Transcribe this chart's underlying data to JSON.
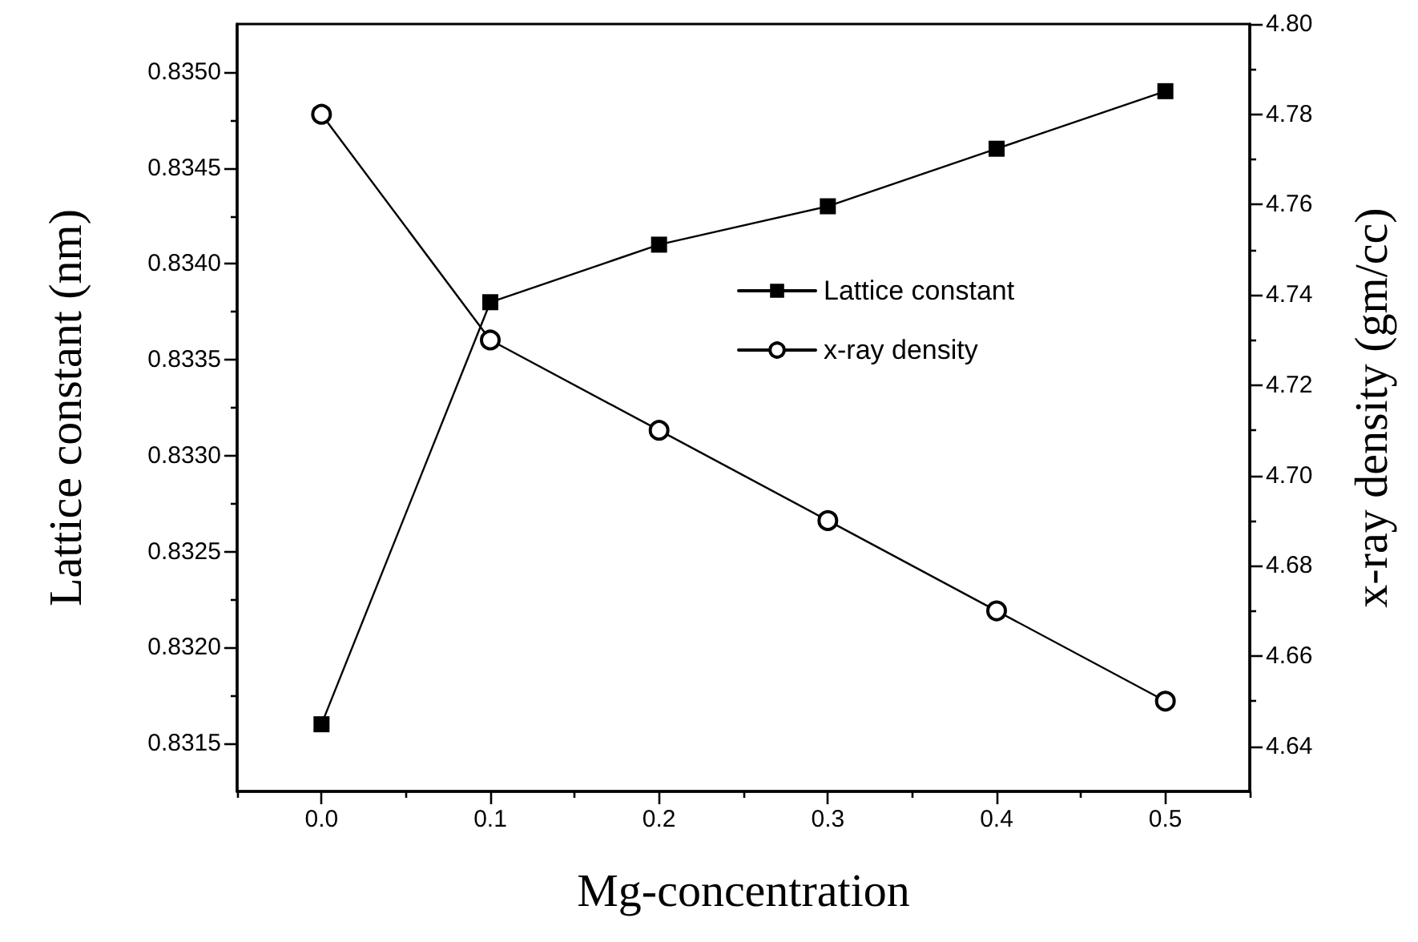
{
  "chart_data": {
    "type": "line",
    "xlabel": "Mg-concentration",
    "ylabel": "Lattice constant (nm)",
    "y2label": "x-ray density (gm/cc)",
    "x": [
      0.0,
      0.1,
      0.2,
      0.3,
      0.4,
      0.5
    ],
    "series": [
      {
        "name": "Lattice constant",
        "color": "#000000",
        "marker": "square",
        "values": [
          0.8316,
          0.8338,
          0.8341,
          0.8343,
          0.8346,
          0.8349
        ]
      },
      {
        "name": "x-ray density",
        "color": "#000000",
        "marker": "circle",
        "axis": "y2",
        "values": [
          4.78,
          4.73,
          4.71,
          4.69,
          4.67,
          4.65
        ]
      }
    ],
    "xlim": [
      -0.05,
      0.55
    ],
    "xticks": [
      {
        "value": -0.05,
        "label": null
      },
      {
        "value": 0,
        "label": "0.0"
      },
      {
        "value": 0.05,
        "label": null
      },
      {
        "value": 0.1,
        "label": "0.1"
      },
      {
        "value": 0.15,
        "label": null
      },
      {
        "value": 0.2,
        "label": "0.2"
      },
      {
        "value": 0.25,
        "label": null
      },
      {
        "value": 0.3,
        "label": "0.3"
      },
      {
        "value": 0.35,
        "label": null
      },
      {
        "value": 0.4,
        "label": "0.4"
      },
      {
        "value": 0.45,
        "label": null
      },
      {
        "value": 0.5,
        "label": "0.5"
      },
      {
        "value": 0.55,
        "label": null
      }
    ],
    "ylim": [
      0.83125,
      0.83525
    ],
    "yticks": [
      {
        "value": 0.8315,
        "label": "0.8315"
      },
      {
        "value": 0.83175,
        "label": null
      },
      {
        "value": 0.832,
        "label": "0.8320"
      },
      {
        "value": 0.83225,
        "label": null
      },
      {
        "value": 0.8325,
        "label": "0.8325"
      },
      {
        "value": 0.83275,
        "label": null
      },
      {
        "value": 0.833,
        "label": "0.8330"
      },
      {
        "value": 0.83325,
        "label": null
      },
      {
        "value": 0.8335,
        "label": "0.8335"
      },
      {
        "value": 0.83375,
        "label": null
      },
      {
        "value": 0.834,
        "label": "0.8340"
      },
      {
        "value": 0.83425,
        "label": null
      },
      {
        "value": 0.8345,
        "label": "0.8345"
      },
      {
        "value": 0.83475,
        "label": null
      },
      {
        "value": 0.835,
        "label": "0.8350"
      }
    ],
    "y2lim": [
      4.63,
      4.8
    ],
    "y2ticks": [
      {
        "value": 4.64,
        "label": "4.64"
      },
      {
        "value": 4.65,
        "label": null
      },
      {
        "value": 4.66,
        "label": "4.66"
      },
      {
        "value": 4.67,
        "label": null
      },
      {
        "value": 4.68,
        "label": "4.68"
      },
      {
        "value": 4.69,
        "label": null
      },
      {
        "value": 4.7,
        "label": "4.70"
      },
      {
        "value": 4.71,
        "label": null
      },
      {
        "value": 4.72,
        "label": "4.72"
      },
      {
        "value": 4.73,
        "label": null
      },
      {
        "value": 4.74,
        "label": "4.74"
      },
      {
        "value": 4.75,
        "label": null
      },
      {
        "value": 4.76,
        "label": "4.76"
      },
      {
        "value": 4.77,
        "label": null
      },
      {
        "value": 4.78,
        "label": "4.78"
      },
      {
        "value": 4.79,
        "label": null
      },
      {
        "value": 4.8,
        "label": "4.80"
      }
    ],
    "legend": "right",
    "line_style": "solid",
    "grid": false
  }
}
